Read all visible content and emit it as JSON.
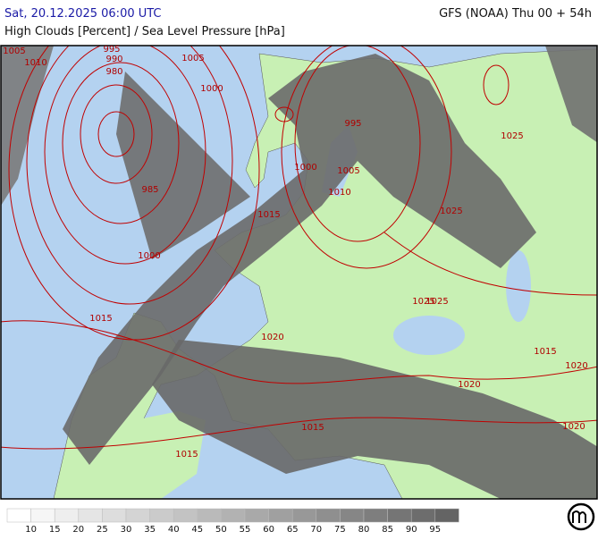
{
  "header": {
    "left": "Sat, 20.12.2025 06:00 UTC",
    "right": "GFS (NOAA) Thu 00 + 54h",
    "subtitle": "High Clouds [Percent] / Sea Level Pressure [hPa]"
  },
  "isobar_labels": [
    "1005",
    "1010",
    "995",
    "990",
    "980",
    "1005",
    "1000",
    "985",
    "1000",
    "1015",
    "1000",
    "1005",
    "1010",
    "1015",
    "995",
    "1025",
    "1025",
    "1015",
    "1025",
    "1025",
    "1020",
    "1020",
    "1020",
    "1020",
    "1015",
    "1015"
  ],
  "legend": {
    "labels": [
      10,
      15,
      20,
      25,
      30,
      35,
      40,
      45,
      50,
      55,
      60,
      65,
      70,
      75,
      80,
      85,
      90,
      95
    ]
  }
}
